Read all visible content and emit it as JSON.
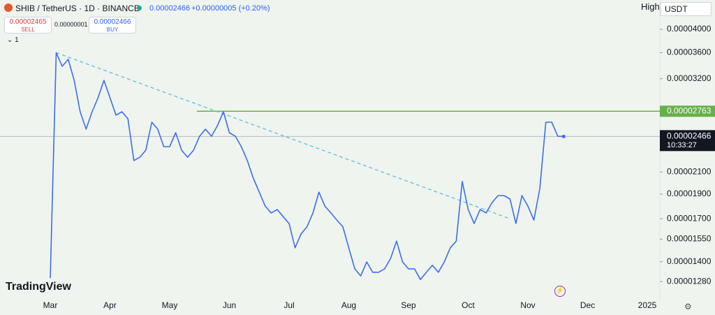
{
  "header": {
    "symbol": "SHIB / TetherUS · 1D · BINANCE",
    "price": "0.00002466",
    "change": "+0.00000005 (+0.20%)",
    "sell_price": "0.00002465",
    "sell": "SELL",
    "spread": "0.00000001",
    "buy_price": "0.00002466",
    "buy": "BUY",
    "indicator_count": "1",
    "scale_mode": "High",
    "currency": "USDT",
    "brand": "TradingView"
  },
  "chart_data": {
    "type": "line",
    "log_scale": true,
    "categories": [
      "Mar",
      null,
      null,
      null,
      null,
      null,
      null,
      null,
      null,
      null,
      "Apr",
      null,
      null,
      null,
      null,
      null,
      null,
      null,
      null,
      null,
      "May",
      null,
      null,
      null,
      null,
      null,
      null,
      null,
      null,
      null,
      "Jun",
      null,
      null,
      null,
      null,
      null,
      null,
      null,
      null,
      null,
      "Jul",
      null,
      null,
      null,
      null,
      null,
      null,
      null,
      null,
      null,
      "Aug",
      null,
      null,
      null,
      null,
      null,
      null,
      null,
      null,
      null,
      "Sep",
      null,
      null,
      null,
      null,
      null,
      null,
      null,
      null,
      null,
      "Oct",
      null,
      null,
      null,
      null,
      null,
      null,
      null,
      null,
      null,
      "Nov",
      null,
      null,
      null,
      null,
      null,
      null,
      null,
      null,
      null,
      "Dec",
      null,
      null,
      null,
      null,
      null,
      null,
      null,
      null,
      null,
      "2025"
    ],
    "series": [
      {
        "name": "SHIB / TetherUS",
        "color": "#3d6df0",
        "values": [
          1.3e-05,
          3.6e-05,
          3.385e-05,
          3.493e-05,
          3.177e-05,
          2.757e-05,
          2.548e-05,
          2.757e-05,
          2.937e-05,
          3.177e-05,
          2.937e-05,
          2.714e-05,
          2.757e-05,
          2.671e-05,
          2.211e-05,
          2.245e-05,
          2.317e-05,
          2.629e-05,
          2.548e-05,
          2.354e-05,
          2.354e-05,
          2.508e-05,
          2.317e-05,
          2.245e-05,
          2.317e-05,
          2.468e-05,
          2.548e-05,
          2.468e-05,
          2.589e-05,
          2.757e-05,
          2.508e-05,
          2.468e-05,
          2.354e-05,
          2.211e-05,
          2.043e-05,
          1.917e-05,
          1.8e-05,
          1.745e-05,
          1.773e-05,
          1.716e-05,
          1.664e-05,
          1.491e-05,
          1.587e-05,
          1.64e-05,
          1.745e-05,
          1.917e-05,
          1.8e-05,
          1.745e-05,
          1.69e-05,
          1.64e-05,
          1.491e-05,
          1.356e-05,
          1.313e-05,
          1.399e-05,
          1.335e-05,
          1.335e-05,
          1.356e-05,
          1.421e-05,
          1.537e-05,
          1.399e-05,
          1.356e-05,
          1.356e-05,
          1.292e-05,
          1.335e-05,
          1.378e-05,
          1.335e-05,
          1.399e-05,
          1.491e-05,
          1.537e-05,
          2.012e-05,
          1.773e-05,
          1.664e-05,
          1.773e-05,
          1.745e-05,
          1.829e-05,
          1.888e-05,
          1.888e-05,
          1.858e-05,
          1.664e-05,
          1.888e-05,
          1.8e-05,
          1.69e-05,
          1.948e-05,
          2.629e-05,
          2.629e-05,
          2.468e-05,
          2.466e-05,
          null,
          null,
          null,
          null,
          null,
          null,
          null,
          null,
          null,
          null,
          null,
          null,
          null,
          null
        ]
      }
    ],
    "ylim": [
      1.176e-05,
      4.567e-05
    ],
    "yticks": [
      {
        "value": 4e-05,
        "label": "0.00004000"
      },
      {
        "value": 3.6e-05,
        "label": "0.00003600"
      },
      {
        "value": 3.2e-05,
        "label": "0.00003200"
      },
      {
        "value": 2.1e-05,
        "label": "0.00002100"
      },
      {
        "value": 1.9e-05,
        "label": "0.00001900"
      },
      {
        "value": 1.7e-05,
        "label": "0.00001700"
      },
      {
        "value": 1.55e-05,
        "label": "0.00001550"
      },
      {
        "value": 1.4e-05,
        "label": "0.00001400"
      },
      {
        "value": 1.28e-05,
        "label": "0.00001280"
      }
    ],
    "level": {
      "value": 2.763e-05,
      "color": "#66b049"
    },
    "trend_line": {
      "values": [
        3.6e-05,
        1.7e-05
      ],
      "color": "#5bbde8"
    },
    "price_label": {
      "value": 2.466e-05,
      "time": "10:33:27"
    }
  }
}
